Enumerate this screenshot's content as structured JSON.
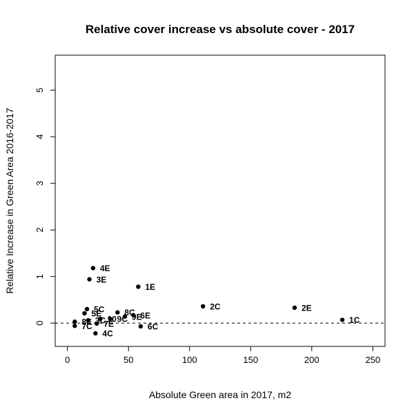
{
  "chart_data": {
    "type": "scatter",
    "title": "Relative cover increase vs absolute cover - 2017",
    "xlabel": "Absolute Green area in 2017, m2",
    "ylabel": "Relative Increase in Green Area 2016-2017",
    "xlim": [
      -10,
      260
    ],
    "ylim": [
      -0.5,
      5.75
    ],
    "x_ticks": [
      0,
      50,
      100,
      150,
      200,
      250
    ],
    "y_ticks": [
      0,
      1,
      2,
      3,
      4,
      5
    ],
    "reference_line": {
      "y": 0,
      "style": "dashed"
    },
    "grid": false,
    "legend": "none",
    "marker_color": "#000000",
    "points": [
      {
        "label": "1C",
        "x": 225,
        "y": 0.07
      },
      {
        "label": "2E",
        "x": 186,
        "y": 0.33
      },
      {
        "label": "2C",
        "x": 111,
        "y": 0.36
      },
      {
        "label": "1E",
        "x": 58,
        "y": 0.78
      },
      {
        "label": "4E",
        "x": 21,
        "y": 1.18
      },
      {
        "label": "3E",
        "x": 18,
        "y": 0.94
      },
      {
        "label": "6E",
        "x": 54,
        "y": 0.17
      },
      {
        "label": "6C",
        "x": 60,
        "y": -0.07
      },
      {
        "label": "9E",
        "x": 47,
        "y": 0.14
      },
      {
        "label": "8C",
        "x": 41,
        "y": 0.23
      },
      {
        "label": "9C",
        "x": 35,
        "y": 0.09
      },
      {
        "label": "10",
        "x": 27,
        "y": 0.09
      },
      {
        "label": "7E",
        "x": 24,
        "y": -0.01
      },
      {
        "label": "4C",
        "x": 23,
        "y": -0.22
      },
      {
        "label": "5C",
        "x": 16,
        "y": 0.3
      },
      {
        "label": "5E",
        "x": 14,
        "y": 0.21
      },
      {
        "label": "3C",
        "x": 17,
        "y": 0.06
      },
      {
        "label": "7C",
        "x": 6,
        "y": -0.06
      },
      {
        "label": "8E",
        "x": 6,
        "y": 0.03
      }
    ]
  }
}
